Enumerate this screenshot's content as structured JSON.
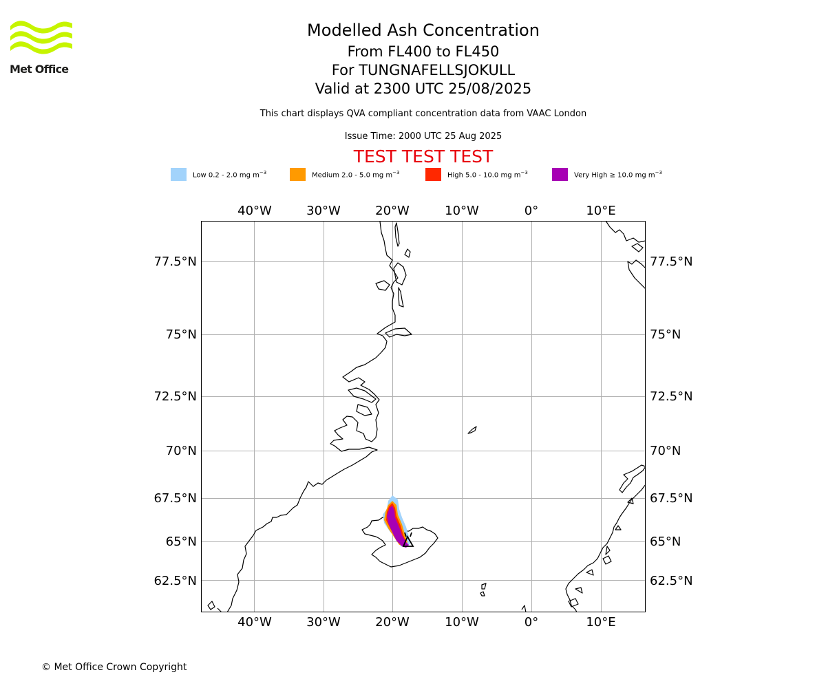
{
  "logo": {
    "text": "Met Office",
    "color": "#c6f400"
  },
  "header": {
    "title": "Modelled Ash Concentration",
    "levels": "From FL400 to FL450",
    "volcano": "For TUNGNAFELLSJOKULL",
    "valid": "Valid at 2300 UTC 25/08/2025",
    "description": "This chart displays QVA compliant concentration data from VAAC London",
    "issue_time": "Issue Time: 2000 UTC 25 Aug 2025",
    "test_banner": "TEST TEST TEST"
  },
  "legend": [
    {
      "label": "Low 0.2 - 2.0 mg m",
      "color": "#a2d3fb"
    },
    {
      "label": "Medium 2.0 - 5.0 mg m",
      "color": "#ff9a00"
    },
    {
      "label": "High 5.0 - 10.0 mg m",
      "color": "#ff2800"
    },
    {
      "label": "Very High  ≥  10.0 mg m",
      "color": "#a700b4"
    }
  ],
  "legend_unit_exponent": "−3",
  "map": {
    "lon_ticks": [
      "40°W",
      "30°W",
      "20°W",
      "10°W",
      "0°",
      "10°E"
    ],
    "lat_ticks": [
      "77.5°N",
      "75°N",
      "72.5°N",
      "70°N",
      "67.5°N",
      "65°N",
      "62.5°N"
    ],
    "lon_range": [
      -47.7,
      16.5
    ],
    "lat_range": [
      61.0,
      79.0
    ],
    "grid": true,
    "volcano_marker": "triangle-outline"
  },
  "footer": {
    "copyright": "© Met Office Crown Copyright"
  }
}
